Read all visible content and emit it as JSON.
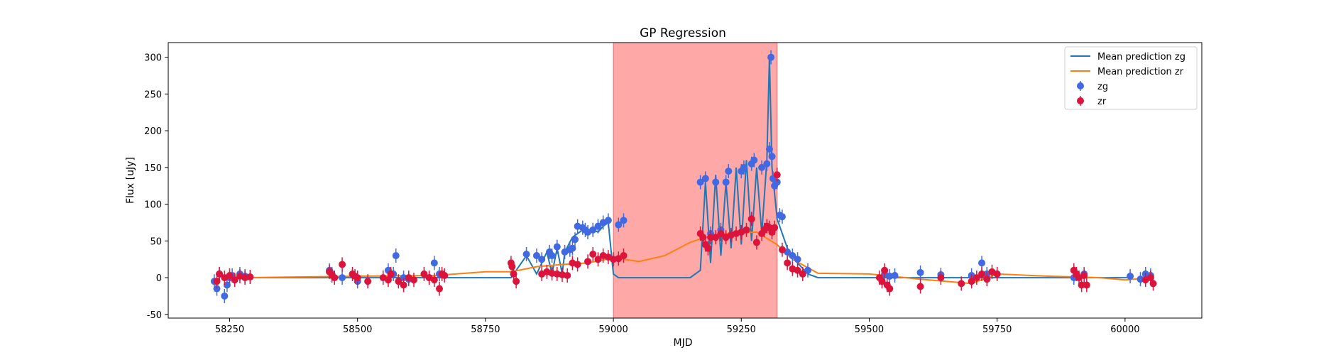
{
  "chart_data": {
    "type": "scatter",
    "title": "GP Regression",
    "xlabel": "MJD",
    "ylabel": "Flux [uJy]",
    "xlim": [
      58130,
      60150
    ],
    "ylim": [
      -55,
      320
    ],
    "xticks": [
      58250,
      58500,
      58750,
      59000,
      59250,
      59500,
      59750,
      60000
    ],
    "yticks": [
      -50,
      0,
      50,
      100,
      150,
      200,
      250,
      300
    ],
    "grid": false,
    "legend": "upper-right",
    "shaded_region": {
      "x0": 59000,
      "x1": 59320,
      "color": "#ffa8a8"
    },
    "series": [
      {
        "name": "Mean prediction zg",
        "kind": "line",
        "color": "#1f77b4",
        "x": [
          58280,
          58800,
          58830,
          58850,
          58870,
          58880,
          58890,
          58900,
          58905,
          58920,
          58940,
          58950,
          58960,
          58970,
          58980,
          58990,
          59000,
          59010,
          59100,
          59150,
          59170,
          59180,
          59190,
          59200,
          59210,
          59220,
          59230,
          59240,
          59250,
          59260,
          59270,
          59280,
          59290,
          59300,
          59305,
          59310,
          59320,
          59330,
          59340,
          59360,
          59380,
          59400,
          59500,
          59700,
          59900,
          60010
        ],
        "y": [
          0,
          0,
          30,
          5,
          35,
          5,
          40,
          5,
          35,
          55,
          65,
          60,
          65,
          62,
          70,
          75,
          5,
          0,
          0,
          0,
          10,
          130,
          20,
          140,
          30,
          130,
          40,
          150,
          45,
          160,
          50,
          150,
          60,
          160,
          300,
          150,
          80,
          60,
          40,
          20,
          5,
          0,
          0,
          0,
          0,
          0
        ]
      },
      {
        "name": "Mean prediction zr",
        "kind": "line",
        "color": "#ff7f0e",
        "x": [
          58280,
          58500,
          58650,
          58750,
          58800,
          58850,
          58900,
          58950,
          59000,
          59050,
          59100,
          59150,
          59180,
          59220,
          59280,
          59320,
          59350,
          59400,
          59500,
          59600,
          59650,
          59700,
          59750,
          59850,
          59950,
          60000,
          60050
        ],
        "y": [
          0,
          2,
          3,
          8,
          8,
          15,
          18,
          20,
          27,
          22,
          30,
          48,
          55,
          60,
          62,
          45,
          25,
          6,
          5,
          -2,
          -5,
          -8,
          5,
          2,
          0,
          -3,
          0
        ]
      },
      {
        "name": "zg",
        "kind": "points",
        "color": "#4169e1",
        "x": [
          58220,
          58225,
          58230,
          58240,
          58245,
          58250,
          58255,
          58270,
          58280,
          58445,
          58450,
          58470,
          58500,
          58560,
          58570,
          58575,
          58590,
          58600,
          58640,
          58650,
          58660,
          58830,
          58850,
          58860,
          58875,
          58880,
          58890,
          58905,
          58915,
          58920,
          58925,
          58930,
          58940,
          58945,
          58950,
          58960,
          58970,
          58980,
          58990,
          59010,
          59020,
          59170,
          59180,
          59190,
          59200,
          59210,
          59220,
          59225,
          59250,
          59255,
          59270,
          59275,
          59290,
          59300,
          59305,
          59308,
          59310,
          59312,
          59315,
          59320,
          59325,
          59330,
          59340,
          59350,
          59360,
          59380,
          59530,
          59540,
          59550,
          59600,
          59640,
          59700,
          59720,
          59730,
          59900,
          59920,
          60010,
          60030,
          60040,
          60050
        ],
        "y": [
          -5,
          -15,
          5,
          -25,
          -10,
          0,
          3,
          5,
          2,
          10,
          5,
          0,
          -5,
          10,
          5,
          30,
          0,
          -2,
          0,
          20,
          5,
          32,
          30,
          25,
          35,
          30,
          42,
          35,
          38,
          40,
          52,
          70,
          68,
          65,
          62,
          65,
          70,
          75,
          78,
          72,
          78,
          130,
          135,
          60,
          130,
          65,
          130,
          145,
          145,
          150,
          155,
          160,
          150,
          155,
          175,
          300,
          165,
          135,
          125,
          130,
          85,
          83,
          35,
          30,
          25,
          10,
          5,
          2,
          3,
          7,
          4,
          3,
          20,
          5,
          0,
          5,
          2,
          -2,
          5,
          3
        ]
      },
      {
        "name": "zr",
        "kind": "points",
        "color": "#dc143c",
        "x": [
          58225,
          58230,
          58240,
          58250,
          58260,
          58270,
          58280,
          58290,
          58445,
          58450,
          58455,
          58470,
          58490,
          58495,
          58500,
          58520,
          58550,
          58560,
          58565,
          58580,
          58590,
          58600,
          58610,
          58630,
          58640,
          58650,
          58660,
          58665,
          58670,
          58800,
          58802,
          58805,
          58810,
          58860,
          58870,
          58880,
          58890,
          58900,
          58910,
          58920,
          58930,
          58950,
          58960,
          58970,
          58980,
          58990,
          59000,
          59010,
          59020,
          59170,
          59175,
          59180,
          59185,
          59190,
          59200,
          59210,
          59220,
          59230,
          59240,
          59250,
          59260,
          59270,
          59280,
          59290,
          59295,
          59300,
          59305,
          59310,
          59315,
          59320,
          59330,
          59340,
          59350,
          59360,
          59370,
          59520,
          59525,
          59530,
          59535,
          59540,
          59600,
          59640,
          59680,
          59700,
          59710,
          59720,
          59730,
          59740,
          59750,
          59900,
          59905,
          59910,
          59915,
          59920,
          59925,
          60040,
          60050,
          60055
        ],
        "y": [
          -5,
          5,
          0,
          3,
          -3,
          2,
          0,
          1,
          8,
          3,
          0,
          18,
          5,
          2,
          0,
          -5,
          0,
          -3,
          5,
          -5,
          -10,
          0,
          -3,
          5,
          0,
          -3,
          -15,
          5,
          3,
          20,
          15,
          5,
          -5,
          5,
          8,
          6,
          5,
          4,
          3,
          20,
          18,
          22,
          32,
          25,
          30,
          28,
          25,
          26,
          30,
          60,
          55,
          45,
          40,
          55,
          55,
          60,
          55,
          58,
          60,
          62,
          65,
          80,
          48,
          60,
          65,
          70,
          68,
          62,
          68,
          140,
          38,
          20,
          12,
          10,
          5,
          0,
          -5,
          10,
          -10,
          -15,
          -12,
          0,
          -8,
          -5,
          0,
          5,
          -2,
          8,
          5,
          10,
          5,
          0,
          -10,
          3,
          -10,
          -3,
          0,
          -8
        ]
      }
    ]
  }
}
